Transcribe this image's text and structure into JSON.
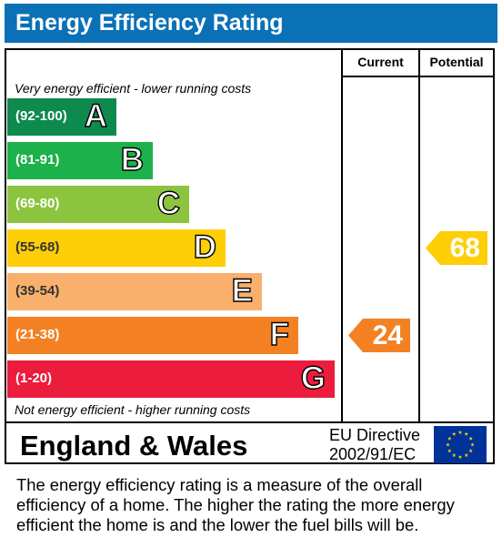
{
  "title": "Energy Efficiency Rating",
  "columns": {
    "current": "Current",
    "potential": "Potential"
  },
  "notes": {
    "top": "Very energy efficient - lower running costs",
    "bottom": "Not energy efficient - higher running costs"
  },
  "chart_data": {
    "type": "bar",
    "categories": [
      "A",
      "B",
      "C",
      "D",
      "E",
      "F",
      "G"
    ],
    "ranges": [
      "(92-100)",
      "(81-91)",
      "(69-80)",
      "(55-68)",
      "(39-54)",
      "(21-38)",
      "(1-20)"
    ],
    "colors": [
      "#0f8a4f",
      "#1db14b",
      "#8cc43f",
      "#fece06",
      "#f9b06c",
      "#f38124",
      "#ec1c3c"
    ],
    "current": {
      "value": 24,
      "label": "24",
      "band": "F",
      "color": "#f38124"
    },
    "potential": {
      "value": 68,
      "label": "68",
      "band": "D",
      "color": "#fece06"
    }
  },
  "footer": {
    "region": "England & Wales",
    "directive_line1": "EU Directive",
    "directive_line2": "2002/91/EC",
    "flag_color": "#003399",
    "star_color": "#ffcc00"
  },
  "description": "The energy efficiency rating is a measure of the overall efficiency of a home.  The higher the rating the more energy efficient the home is and the lower the fuel bills will be."
}
